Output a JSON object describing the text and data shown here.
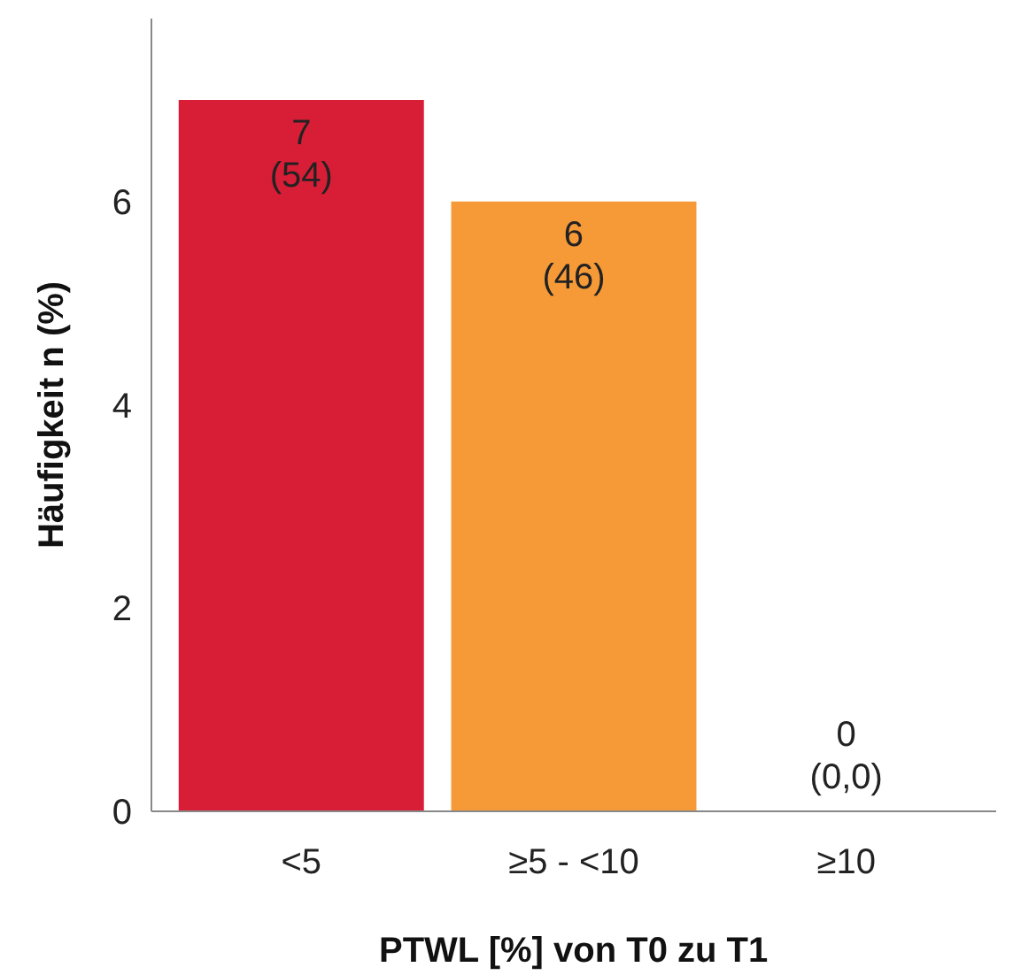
{
  "chart_data": {
    "type": "bar",
    "xlabel": "PTWL [%] von T0 zu T1",
    "ylabel": "Häufigkeit n (%)",
    "categories": [
      "<5",
      "≥5 - <10",
      "≥10"
    ],
    "values": [
      7,
      6,
      0
    ],
    "colors": [
      "#d81e36",
      "#f69a38",
      "#4f81bd"
    ],
    "value_labels": [
      "7\n(54)",
      "6\n(46)",
      "0\n(0,0)"
    ],
    "ylim": [
      0,
      7.8
    ],
    "yticks": [
      0,
      2,
      4,
      6
    ],
    "grid": false
  }
}
